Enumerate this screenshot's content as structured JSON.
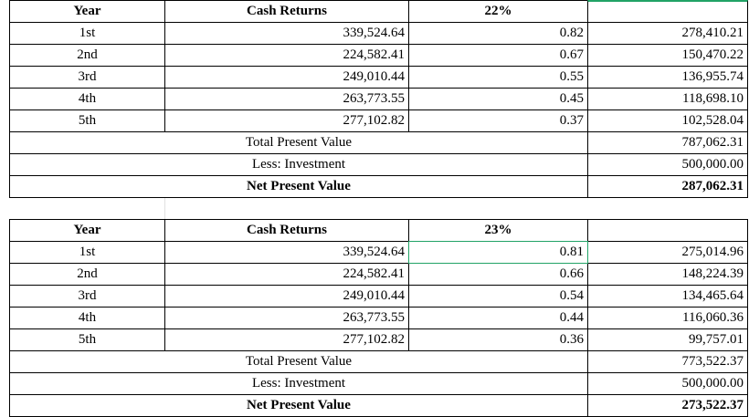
{
  "tables": [
    {
      "header": {
        "year": "Year",
        "cash_returns": "Cash Returns",
        "rate": "22%"
      },
      "rows": [
        [
          "1st",
          "339,524.64",
          "0.82",
          "278,410.21"
        ],
        [
          "2nd",
          "224,582.41",
          "0.67",
          "150,470.22"
        ],
        [
          "3rd",
          "249,010.44",
          "0.55",
          "136,955.74"
        ],
        [
          "4th",
          "263,773.55",
          "0.45",
          "118,698.10"
        ],
        [
          "5th",
          "277,102.82",
          "0.37",
          "102,528.04"
        ]
      ],
      "total": {
        "label": "Total Present Value",
        "value": "787,062.31"
      },
      "investment": {
        "label": "Less: Investment",
        "value": "500,000.00"
      },
      "net": {
        "label": "Net Present Value",
        "value": "287,062.31"
      }
    },
    {
      "header": {
        "year": "Year",
        "cash_returns": "Cash Returns",
        "rate": "23%"
      },
      "rows": [
        [
          "1st",
          "339,524.64",
          "0.81",
          "275,014.96"
        ],
        [
          "2nd",
          "224,582.41",
          "0.66",
          "148,224.39"
        ],
        [
          "3rd",
          "249,010.44",
          "0.54",
          "134,465.64"
        ],
        [
          "4th",
          "263,773.55",
          "0.44",
          "116,060.36"
        ],
        [
          "5th",
          "277,102.82",
          "0.36",
          "99,757.01"
        ]
      ],
      "total": {
        "label": "Total Present Value",
        "value": "773,522.37"
      },
      "investment": {
        "label": "Less: Investment",
        "value": "500,000.00"
      },
      "net": {
        "label": "Net Present Value",
        "value": "273,522.37"
      }
    }
  ]
}
